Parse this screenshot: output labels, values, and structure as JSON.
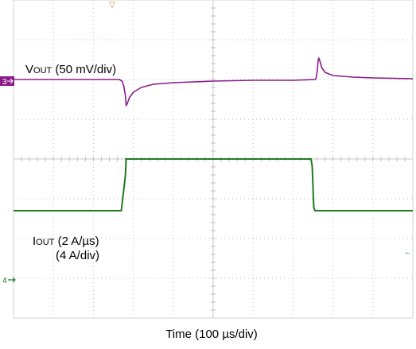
{
  "chart_data": {
    "type": "line",
    "title": "",
    "xlabel": "Time (100 µs/div)",
    "x_divisions": 10,
    "y_divisions": 8,
    "x_range_us": [
      0,
      1000
    ],
    "grid": true,
    "series": [
      {
        "name": "VOUT (50 mV/div)",
        "label_main": "V",
        "label_sub": "OUT",
        "label_rest": " (50 mV/div)",
        "unit": "mV",
        "scale_per_div": 50,
        "channel": "3",
        "color": "#8b1a8b",
        "ref_div_from_top": 2,
        "points": [
          [
            0,
            0
          ],
          [
            265,
            0
          ],
          [
            272,
            -2
          ],
          [
            276,
            -8
          ],
          [
            280,
            -20
          ],
          [
            282,
            -33
          ],
          [
            285,
            -30
          ],
          [
            290,
            -23
          ],
          [
            300,
            -16
          ],
          [
            320,
            -10
          ],
          [
            350,
            -6
          ],
          [
            400,
            -4
          ],
          [
            450,
            -3
          ],
          [
            500,
            -2
          ],
          [
            600,
            -1
          ],
          [
            700,
            -1
          ],
          [
            755,
            0
          ],
          [
            758,
            2
          ],
          [
            761,
            12
          ],
          [
            763,
            25
          ],
          [
            765,
            27
          ],
          [
            768,
            22
          ],
          [
            772,
            15
          ],
          [
            780,
            9
          ],
          [
            800,
            5
          ],
          [
            850,
            3
          ],
          [
            900,
            2
          ],
          [
            1000,
            1
          ]
        ]
      },
      {
        "name": "IOUT (2 A/µs) (4 A/div)",
        "label_main": "I",
        "label_sub": "OUT",
        "label_rest": " (2 A/µs)",
        "label_line2": "(4 A/div)",
        "unit": "A",
        "scale_per_div": 4,
        "channel": "4",
        "color": "#1e7a1e",
        "ref_div_from_top": 5.3,
        "points": [
          [
            0,
            0
          ],
          [
            270,
            0
          ],
          [
            280,
            3.5
          ],
          [
            282,
            5.2
          ],
          [
            290,
            5.2
          ],
          [
            500,
            5.2
          ],
          [
            745,
            5.2
          ],
          [
            748,
            4.5
          ],
          [
            752,
            0.3
          ],
          [
            755,
            0
          ],
          [
            1000,
            0
          ]
        ]
      }
    ],
    "markers": {
      "trigger_glyph": "▽",
      "right_arrow": "←",
      "trigger_color": "#e07a10"
    }
  }
}
